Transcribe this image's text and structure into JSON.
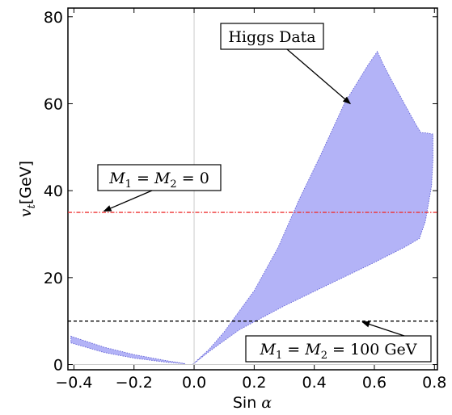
{
  "chart_data": {
    "type": "area",
    "xlabel": {
      "main": "Sin ",
      "greek": "α"
    },
    "ylabel": {
      "main": "v",
      "sub": "t",
      "rest": "[GeV]"
    },
    "xlim": [
      -0.42,
      0.81
    ],
    "ylim": [
      -1.2,
      82
    ],
    "x_ticks": [
      -0.4,
      -0.2,
      0.0,
      0.2,
      0.4,
      0.6,
      0.8
    ],
    "x_tick_labels": [
      "−0.4",
      "−0.2",
      "0.0",
      "0.2",
      "0.4",
      "0.6",
      "0.8"
    ],
    "y_ticks": [
      0,
      20,
      40,
      60,
      80
    ],
    "y_tick_labels": [
      "0",
      "20",
      "40",
      "60",
      "80"
    ],
    "region_color": "#b3b3f7",
    "region_edge_color": "#6a6ad8",
    "series": [
      {
        "name": "Higgs Data",
        "type": "area",
        "polygons": [
          [
            [
              -0.005,
              0.0
            ],
            [
              0.05,
              3.0
            ],
            [
              0.15,
              8.0
            ],
            [
              0.3,
              13.5
            ],
            [
              0.45,
              18.5
            ],
            [
              0.6,
              23.5
            ],
            [
              0.7,
              27.0
            ],
            [
              0.75,
              29.0
            ],
            [
              0.77,
              33.0
            ],
            [
              0.79,
              41.0
            ],
            [
              0.795,
              47.0
            ],
            [
              0.795,
              53.0
            ],
            [
              0.77,
              53.3
            ],
            [
              0.755,
              53.3
            ],
            [
              0.74,
              55.0
            ],
            [
              0.7,
              60.0
            ],
            [
              0.66,
              65.0
            ],
            [
              0.63,
              69.0
            ],
            [
              0.61,
              72.0
            ],
            [
              0.58,
              69.0
            ],
            [
              0.5,
              60.0
            ],
            [
              0.42,
              48.0
            ],
            [
              0.35,
              38.0
            ],
            [
              0.28,
              27.0
            ],
            [
              0.2,
              17.0
            ],
            [
              0.1,
              7.5
            ],
            [
              0.05,
              3.5
            ],
            [
              -0.005,
              0.0
            ]
          ],
          [
            [
              -0.41,
              6.5
            ],
            [
              -0.3,
              4.0
            ],
            [
              -0.2,
              2.3
            ],
            [
              -0.1,
              1.0
            ],
            [
              -0.03,
              0.2
            ],
            [
              -0.1,
              0.6
            ],
            [
              -0.2,
              1.5
            ],
            [
              -0.3,
              2.8
            ],
            [
              -0.41,
              5.0
            ]
          ]
        ]
      },
      {
        "name": "M1 = M2 = 0",
        "type": "hline",
        "y": 35.0,
        "color": "#e33",
        "style": "dashdot"
      },
      {
        "name": "M1 = M2 = 100 GeV",
        "type": "hline",
        "y": 10.0,
        "color": "#000",
        "style": "dashed"
      }
    ],
    "annotations": [
      {
        "label": "Higgs Data",
        "target": [
          0.52,
          60.0
        ]
      },
      {
        "label_parts": [
          {
            "t": "M",
            "i": true
          },
          {
            "t": "1",
            "sub": true
          },
          {
            "t": " = "
          },
          {
            "t": "M",
            "i": true
          },
          {
            "t": "2",
            "sub": true
          },
          {
            "t": " = 0"
          }
        ],
        "target": [
          -0.3,
          35.3
        ]
      },
      {
        "label_parts": [
          {
            "t": "M",
            "i": true
          },
          {
            "t": "1",
            "sub": true
          },
          {
            "t": " = "
          },
          {
            "t": "M",
            "i": true
          },
          {
            "t": "2",
            "sub": true
          },
          {
            "t": " = 100 GeV"
          }
        ],
        "target": [
          0.56,
          9.8
        ]
      }
    ]
  }
}
